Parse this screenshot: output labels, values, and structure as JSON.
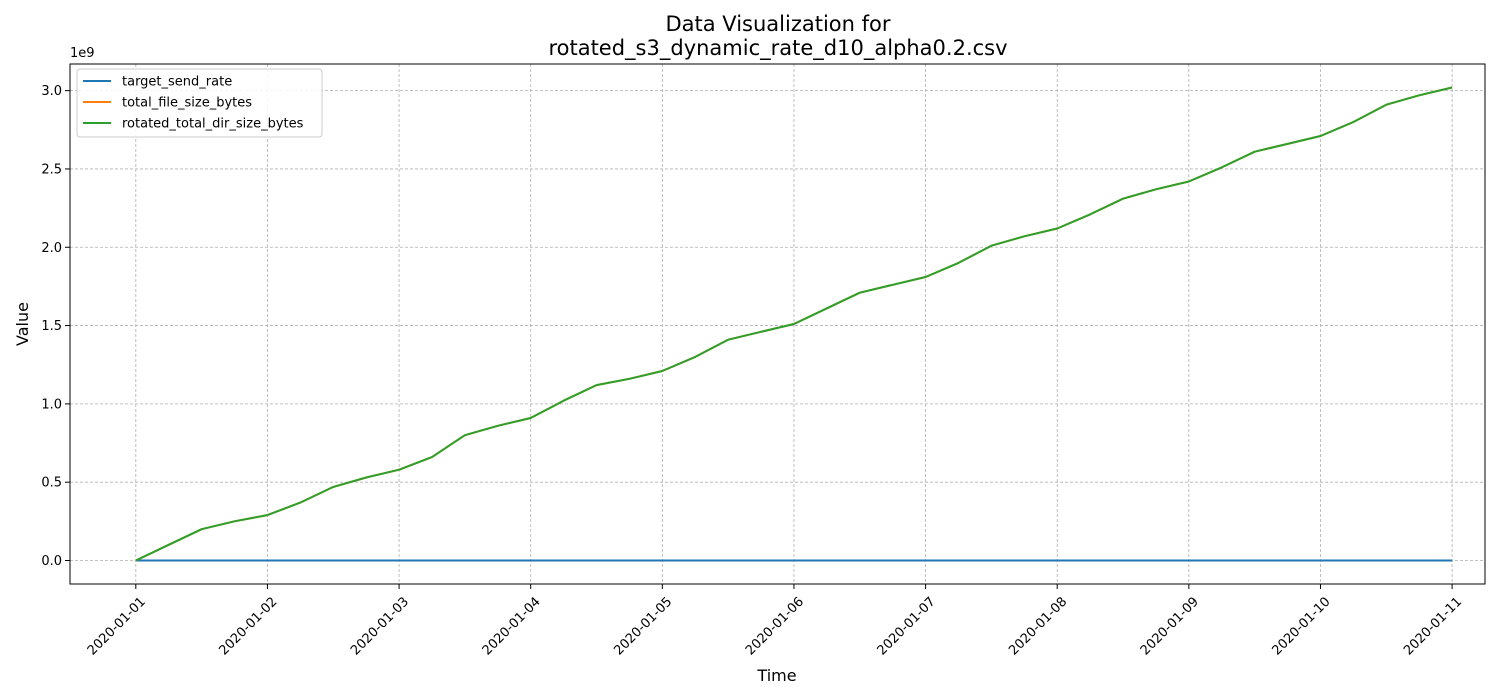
{
  "chart_data": {
    "type": "line",
    "title": "Data Visualization for",
    "subtitle": "rotated_s3_dynamic_rate_d10_alpha0.2.csv",
    "xlabel": "Time",
    "ylabel": "Value",
    "y_offset_label": "1e9",
    "y_scale": 1000000000,
    "xlim": [
      "2019-12-31T12:00",
      "2020-01-11T06:00"
    ],
    "ylim": [
      -0.15,
      3.17
    ],
    "x_ticks": [
      "2020-01-01",
      "2020-01-02",
      "2020-01-03",
      "2020-01-04",
      "2020-01-05",
      "2020-01-06",
      "2020-01-07",
      "2020-01-08",
      "2020-01-09",
      "2020-01-10",
      "2020-01-11"
    ],
    "y_ticks": [
      0.0,
      0.5,
      1.0,
      1.5,
      2.0,
      2.5,
      3.0
    ],
    "y_tick_labels": [
      "0.0",
      "0.5",
      "1.0",
      "1.5",
      "2.0",
      "2.5",
      "3.0"
    ],
    "grid": true,
    "legend_position": "top-left",
    "x": [
      "2020-01-01T00:00",
      "2020-01-01T06:00",
      "2020-01-01T12:00",
      "2020-01-01T18:00",
      "2020-01-02T00:00",
      "2020-01-02T06:00",
      "2020-01-02T12:00",
      "2020-01-02T18:00",
      "2020-01-03T00:00",
      "2020-01-03T06:00",
      "2020-01-03T12:00",
      "2020-01-03T18:00",
      "2020-01-04T00:00",
      "2020-01-04T06:00",
      "2020-01-04T12:00",
      "2020-01-04T18:00",
      "2020-01-05T00:00",
      "2020-01-05T06:00",
      "2020-01-05T12:00",
      "2020-01-05T18:00",
      "2020-01-06T00:00",
      "2020-01-06T06:00",
      "2020-01-06T12:00",
      "2020-01-06T18:00",
      "2020-01-07T00:00",
      "2020-01-07T06:00",
      "2020-01-07T12:00",
      "2020-01-07T18:00",
      "2020-01-08T00:00",
      "2020-01-08T06:00",
      "2020-01-08T12:00",
      "2020-01-08T18:00",
      "2020-01-09T00:00",
      "2020-01-09T06:00",
      "2020-01-09T12:00",
      "2020-01-09T18:00",
      "2020-01-10T00:00",
      "2020-01-10T06:00",
      "2020-01-10T12:00",
      "2020-01-10T18:00",
      "2020-01-11T00:00"
    ],
    "series": [
      {
        "name": "target_send_rate",
        "color": "#1f77b4",
        "values": [
          0,
          0,
          0,
          0,
          0,
          0,
          0,
          0,
          0,
          0,
          0,
          0,
          0,
          0,
          0,
          0,
          0,
          0,
          0,
          0,
          0,
          0,
          0,
          0,
          0,
          0,
          0,
          0,
          0,
          0,
          0,
          0,
          0,
          0,
          0,
          0,
          0,
          0,
          0,
          0,
          0
        ]
      },
      {
        "name": "total_file_size_bytes",
        "color": "#ff7f0e",
        "values": [
          0.0,
          0.1,
          0.2,
          0.25,
          0.29,
          0.37,
          0.47,
          0.53,
          0.58,
          0.66,
          0.8,
          0.86,
          0.91,
          1.02,
          1.12,
          1.16,
          1.21,
          1.3,
          1.41,
          1.46,
          1.51,
          1.61,
          1.71,
          1.76,
          1.81,
          1.9,
          2.01,
          2.07,
          2.12,
          2.21,
          2.31,
          2.37,
          2.42,
          2.51,
          2.61,
          2.66,
          2.71,
          2.8,
          2.91,
          2.97,
          3.02
        ]
      },
      {
        "name": "rotated_total_dir_size_bytes",
        "color": "#2ca02c",
        "values": [
          0.0,
          0.1,
          0.2,
          0.25,
          0.29,
          0.37,
          0.47,
          0.53,
          0.58,
          0.66,
          0.8,
          0.86,
          0.91,
          1.02,
          1.12,
          1.16,
          1.21,
          1.3,
          1.41,
          1.46,
          1.51,
          1.61,
          1.71,
          1.76,
          1.81,
          1.9,
          2.01,
          2.07,
          2.12,
          2.21,
          2.31,
          2.37,
          2.42,
          2.51,
          2.61,
          2.66,
          2.71,
          2.8,
          2.91,
          2.97,
          3.02
        ]
      }
    ]
  }
}
